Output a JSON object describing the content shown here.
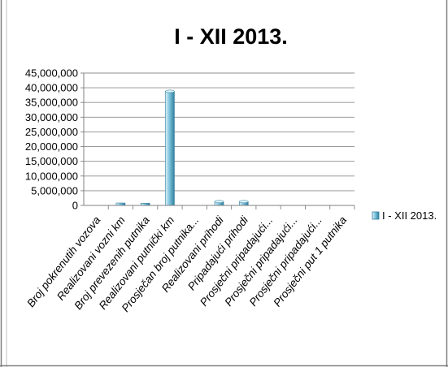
{
  "chart_data": {
    "type": "bar",
    "title": "I - XII 2013.",
    "xlabel": "",
    "ylabel": "",
    "ylim": [
      0,
      45000000
    ],
    "yticks": [
      "0",
      "5,000,000",
      "10,000,000",
      "15,000,000",
      "20,000,000",
      "25,000,000",
      "30,000,000",
      "35,000,000",
      "40,000,000",
      "45,000,000"
    ],
    "grid": true,
    "legend": "right",
    "categories": [
      "Broj pokrenutih vozova",
      "Realizovani vozni km",
      "Broj prevezenih putnika",
      "Realizovani putnički km",
      "Prosječan broj putnika...",
      "Realizovani prihodi",
      "Pripadajući prihodi",
      "Prosječni pripadajući...",
      "Prosječni pripadajući...",
      "Prosječni pripadajući...",
      "Prosječni put 1 putnika"
    ],
    "series": [
      {
        "name": "I - XII 2013.",
        "values": [
          6000,
          820000,
          730000,
          38800000,
          120,
          1330000,
          1320000,
          1.6,
          0.06,
          1.8,
          53
        ]
      }
    ]
  },
  "colors": {
    "bar_light": "#dff1f8",
    "bar_mid": "#7ec3dc",
    "bar_dark": "#2f7f9f",
    "grid": "#8c8c8c",
    "axis": "#808080",
    "frame": "#7f7f7f"
  }
}
